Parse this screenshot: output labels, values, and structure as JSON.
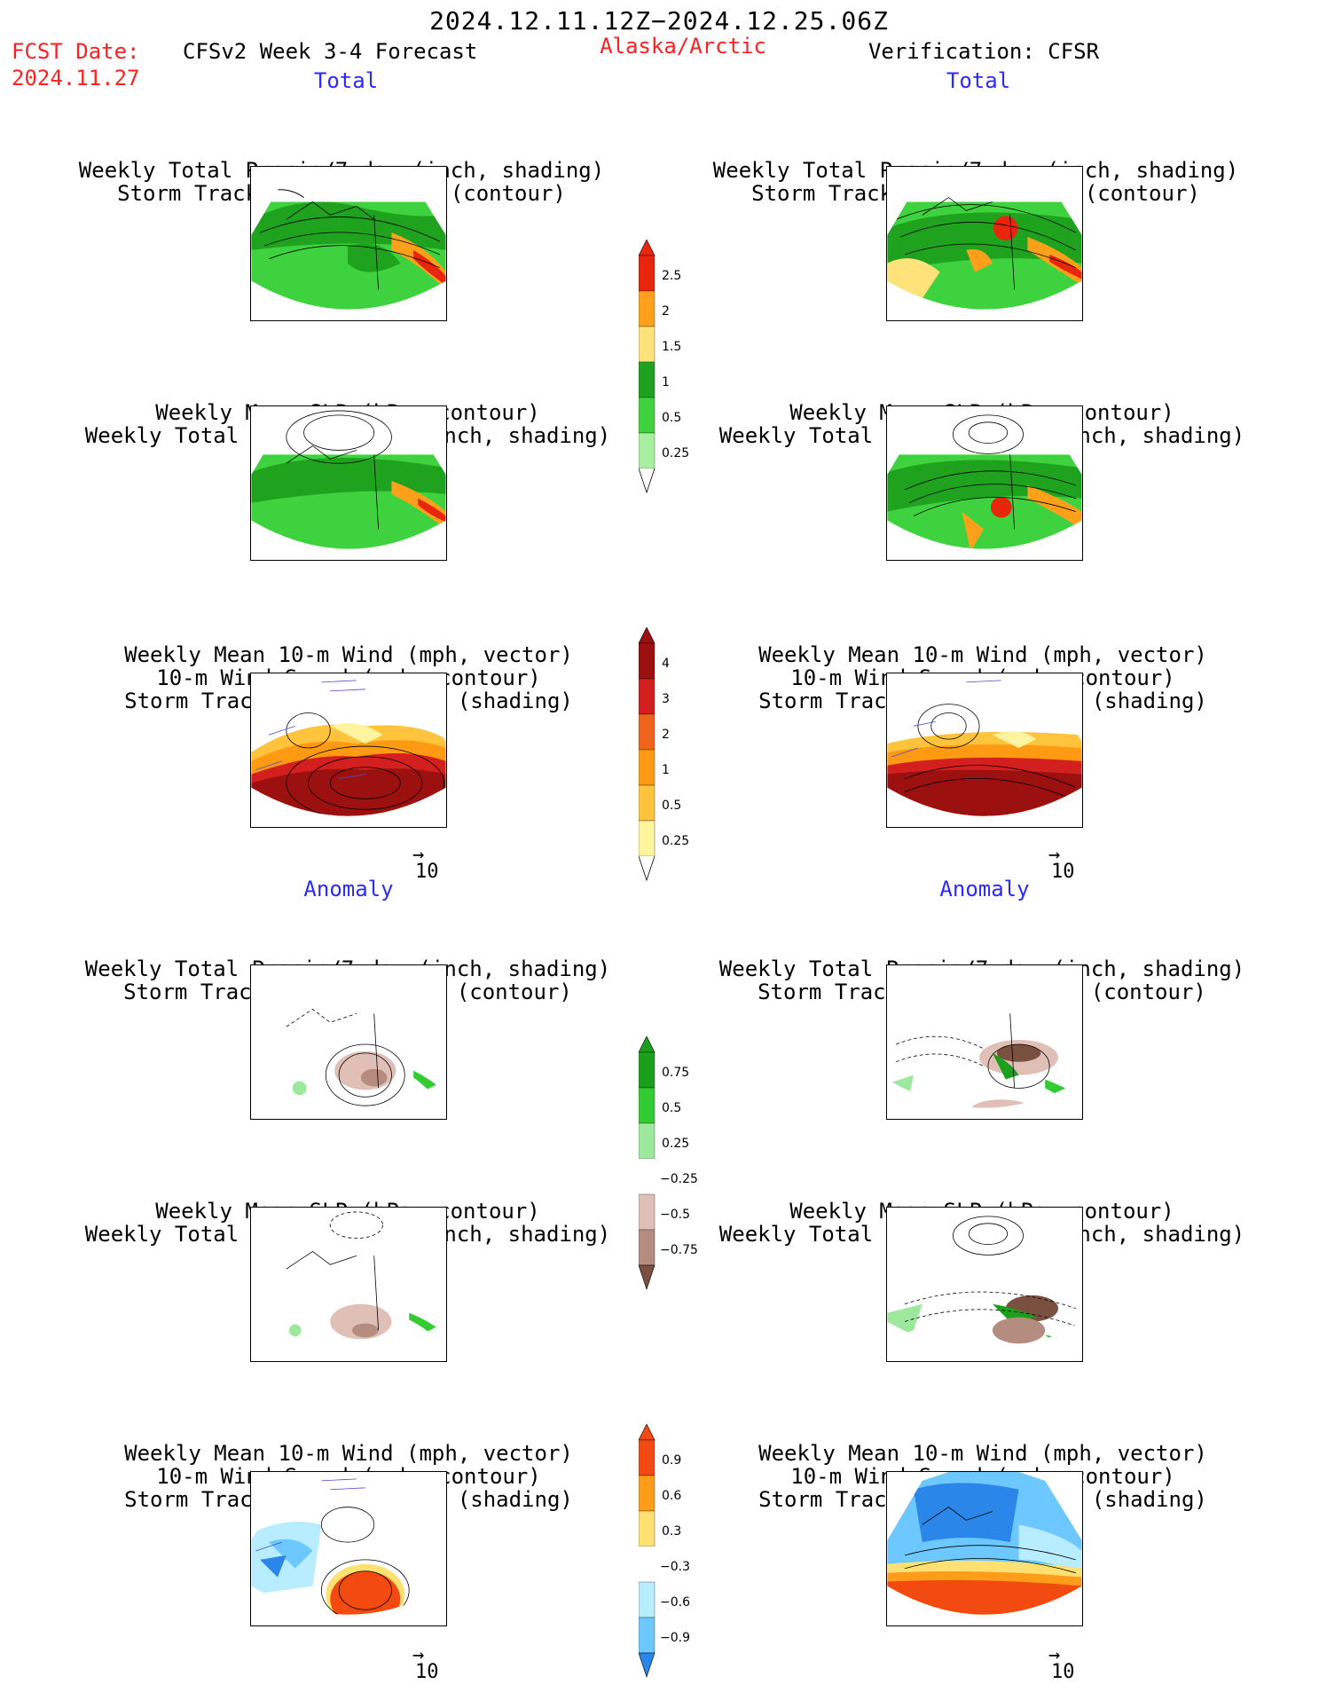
{
  "header": {
    "date_range": "2024.12.11.12Z−2024.12.25.06Z",
    "fcst_label": "FCST Date:",
    "fcst_date": "2024.11.27",
    "model_title": "CFSv2 Week 3-4 Forecast",
    "region": "Alaska/Arctic",
    "verification": "Verification: CFSR"
  },
  "sections": {
    "total": "Total",
    "anomaly": "Anomaly"
  },
  "panel_titles": {
    "precip_storm": [
      "Weekly Total Precip/7-day (inch, shading)",
      "Storm Track Density/7-day (contour)"
    ],
    "slp_precip": [
      "Weekly Mean SLP (hPa, contour)",
      "Weekly Total Precip/7-day (inch, shading)"
    ],
    "wind_storm": [
      "Weekly Mean 10-m Wind (mph, vector)",
      "10-m Wind Speed (mph, contour)",
      "Storm Track Density/7-day (shading)"
    ]
  },
  "vector_scale": "10",
  "colorbars": {
    "precip_total": {
      "labels": [
        "2.5",
        "2",
        "1.5",
        "1",
        "0.5",
        "0.25"
      ],
      "colors": [
        "#e8260e",
        "#ffa01a",
        "#ffe27a",
        "#1fa31f",
        "#3ed33e",
        "#a8f0a0"
      ]
    },
    "storm_total": {
      "labels": [
        "4",
        "3",
        "2",
        "1",
        "0.5",
        "0.25"
      ],
      "colors": [
        "#9c1010",
        "#d41f1f",
        "#f0631a",
        "#ff9a12",
        "#ffc33c",
        "#fff49e"
      ]
    },
    "precip_anom": {
      "labels": [
        "0.75",
        "0.5",
        "0.25",
        "−0.25",
        "−0.5",
        "−0.75"
      ],
      "colors": [
        "#1aa01a",
        "#32cc32",
        "#9ee89e",
        "#ffffff",
        "#e0c0b6",
        "#b48c80",
        "#7a5040"
      ]
    },
    "storm_anom": {
      "labels": [
        "0.9",
        "0.6",
        "0.3",
        "−0.3",
        "−0.6",
        "−0.9"
      ],
      "colors": [
        "#f24a10",
        "#ff9c1a",
        "#ffe070",
        "#ffffff",
        "#b8ecff",
        "#6cc8ff",
        "#2a86e8"
      ]
    }
  }
}
